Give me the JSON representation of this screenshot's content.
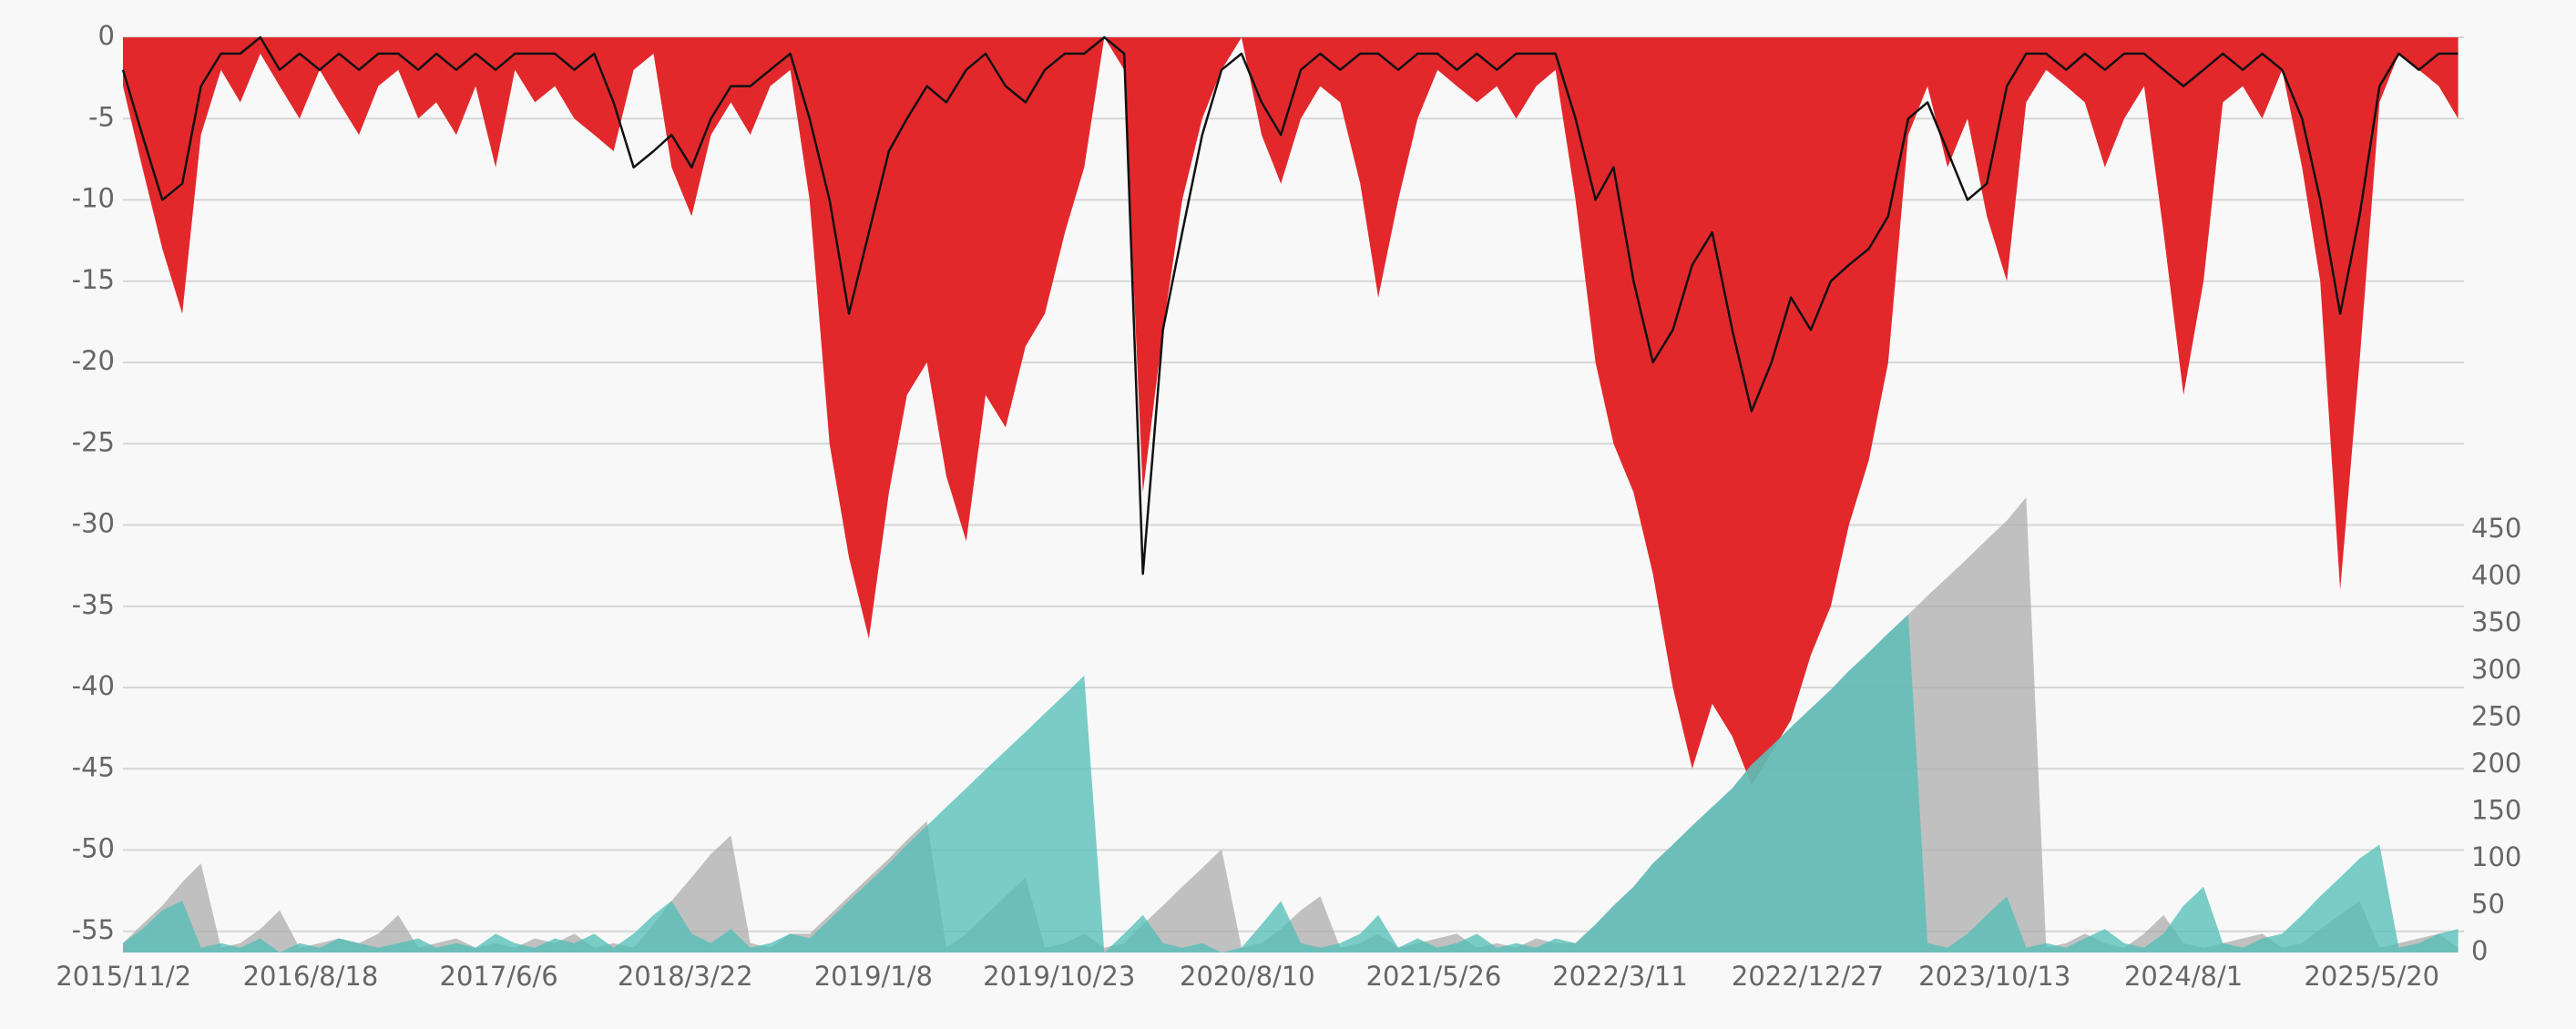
{
  "chart_data": {
    "type": "area",
    "x": [
      "2015/11/1",
      "2015/12/1",
      "2016/1/1",
      "2016/2/1",
      "2016/3/1",
      "2016/4/1",
      "2016/5/1",
      "2016/6/1",
      "2016/7/1",
      "2016/8/1",
      "2016/9/1",
      "2016/10/1",
      "2016/11/1",
      "2016/12/1",
      "2017/1/1",
      "2017/2/1",
      "2017/3/1",
      "2017/4/1",
      "2017/5/1",
      "2017/6/1",
      "2017/7/1",
      "2017/8/1",
      "2017/9/1",
      "2017/10/1",
      "2017/11/1",
      "2017/12/1",
      "2018/1/1",
      "2018/2/1",
      "2018/3/1",
      "2018/4/1",
      "2018/5/1",
      "2018/6/1",
      "2018/7/1",
      "2018/8/1",
      "2018/9/1",
      "2018/10/1",
      "2018/11/1",
      "2018/12/1",
      "2019/1/1",
      "2019/2/1",
      "2019/3/1",
      "2019/4/1",
      "2019/5/1",
      "2019/6/1",
      "2019/7/1",
      "2019/8/1",
      "2019/9/1",
      "2019/10/1",
      "2019/11/1",
      "2019/12/1",
      "2020/1/1",
      "2020/2/1",
      "2020/3/1",
      "2020/4/1",
      "2020/5/1",
      "2020/6/1",
      "2020/7/1",
      "2020/8/1",
      "2020/9/1",
      "2020/10/1",
      "2020/11/1",
      "2020/12/1",
      "2021/1/1",
      "2021/2/1",
      "2021/3/1",
      "2021/4/1",
      "2021/5/1",
      "2021/6/1",
      "2021/7/1",
      "2021/8/1",
      "2021/9/1",
      "2021/10/1",
      "2021/11/1",
      "2021/12/1",
      "2022/1/1",
      "2022/2/1",
      "2022/3/1",
      "2022/4/1",
      "2022/5/1",
      "2022/6/1",
      "2022/7/1",
      "2022/8/1",
      "2022/9/1",
      "2022/10/1",
      "2022/11/1",
      "2022/12/1",
      "2023/1/1",
      "2023/2/1",
      "2023/3/1",
      "2023/4/1",
      "2023/5/1",
      "2023/6/1",
      "2023/7/1",
      "2023/8/1",
      "2023/9/1",
      "2023/10/1",
      "2023/11/1",
      "2023/12/1",
      "2024/1/1",
      "2024/2/1",
      "2024/3/1",
      "2024/4/1",
      "2024/5/1",
      "2024/6/1",
      "2024/7/1",
      "2024/8/1",
      "2024/9/1",
      "2024/10/1",
      "2024/11/1",
      "2024/12/1",
      "2025/1/1",
      "2025/2/1",
      "2025/3/1",
      "2025/4/1",
      "2025/5/1",
      "2025/6/1",
      "2025/7/1",
      "2025/8/1",
      "2025/9/1",
      "2025/10/1"
    ],
    "series": [
      {
        "style": "area",
        "color": "#e3282c",
        "values": [
          -3,
          -8,
          -13,
          -17,
          -6,
          -2,
          -4,
          -1,
          -3,
          -5,
          -2,
          -4,
          -6,
          -3,
          -2,
          -5,
          -4,
          -6,
          -3,
          -8,
          -2,
          -4,
          -3,
          -5,
          -6,
          -7,
          -2,
          -1,
          -8,
          -11,
          -6,
          -4,
          -6,
          -3,
          -2,
          -10,
          -25,
          -32,
          -37,
          -28,
          -22,
          -20,
          -27,
          -31,
          -22,
          -24,
          -19,
          -17,
          -12,
          -8,
          0,
          -2,
          -28,
          -18,
          -10,
          -5,
          -2,
          0,
          -6,
          -9,
          -5,
          -3,
          -4,
          -9,
          -16,
          -10,
          -5,
          -2,
          -3,
          -4,
          -3,
          -5,
          -3,
          -2,
          -10,
          -20,
          -25,
          -28,
          -33,
          -40,
          -45,
          -41,
          -43,
          -46,
          -44,
          -42,
          -38,
          -35,
          -30,
          -26,
          -20,
          -6,
          -3,
          -8,
          -5,
          -11,
          -15,
          -4,
          -2,
          -3,
          -4,
          -8,
          -5,
          -3,
          -12,
          -22,
          -15,
          -4,
          -3,
          -5,
          -2,
          -8,
          -15,
          -34,
          -20,
          -4,
          -1,
          -2,
          -3,
          -5
        ]
      },
      {
        "style": "line",
        "color": "#111111",
        "values": [
          -2,
          -6,
          -10,
          -9,
          -3,
          -1,
          -1,
          0,
          -2,
          -1,
          -2,
          -1,
          -2,
          -1,
          -1,
          -2,
          -1,
          -2,
          -1,
          -2,
          -1,
          -1,
          -1,
          -2,
          -1,
          -4,
          -8,
          -7,
          -6,
          -8,
          -5,
          -3,
          -3,
          -2,
          -1,
          -5,
          -10,
          -17,
          -12,
          -7,
          -5,
          -3,
          -4,
          -2,
          -1,
          -3,
          -4,
          -2,
          -1,
          -1,
          0,
          -1,
          -33,
          -18,
          -12,
          -6,
          -2,
          -1,
          -4,
          -6,
          -2,
          -1,
          -2,
          -1,
          -1,
          -2,
          -1,
          -1,
          -2,
          -1,
          -2,
          -1,
          -1,
          -1,
          -5,
          -10,
          -8,
          -15,
          -20,
          -18,
          -14,
          -12,
          -18,
          -23,
          -20,
          -16,
          -18,
          -15,
          -14,
          -13,
          -11,
          -5,
          -4,
          -7,
          -10,
          -9,
          -3,
          -1,
          -1,
          -2,
          -1,
          -2,
          -1,
          -1,
          -2,
          -3,
          -2,
          -1,
          -2,
          -1,
          -2,
          -5,
          -10,
          -17,
          -11,
          -3,
          -1,
          -2,
          -1,
          -1
        ]
      },
      {
        "style": "area",
        "axis": "y2",
        "color": "rgba(168,168,168,0.7)",
        "values": [
          10,
          30,
          50,
          75,
          95,
          5,
          10,
          25,
          45,
          5,
          10,
          15,
          10,
          20,
          40,
          5,
          10,
          15,
          5,
          10,
          5,
          15,
          10,
          20,
          5,
          10,
          5,
          30,
          55,
          80,
          105,
          125,
          10,
          5,
          20,
          20,
          40,
          60,
          80,
          100,
          120,
          140,
          5,
          20,
          40,
          60,
          80,
          5,
          10,
          20,
          5,
          10,
          30,
          50,
          70,
          90,
          110,
          5,
          10,
          25,
          45,
          60,
          5,
          10,
          20,
          5,
          10,
          15,
          20,
          5,
          10,
          5,
          15,
          10,
          10,
          30,
          50,
          70,
          95,
          115,
          135,
          155,
          175,
          200,
          220,
          240,
          260,
          280,
          300,
          320,
          340,
          360,
          380,
          400,
          420,
          440,
          460,
          485,
          5,
          10,
          20,
          10,
          5,
          20,
          40,
          10,
          5,
          10,
          15,
          20,
          5,
          10,
          25,
          40,
          55,
          5,
          10,
          15,
          20,
          5
        ]
      },
      {
        "style": "area",
        "axis": "y2",
        "color": "rgba(80,190,182,0.75)",
        "values": [
          10,
          25,
          45,
          55,
          5,
          10,
          5,
          15,
          0,
          10,
          5,
          15,
          10,
          5,
          10,
          15,
          5,
          10,
          5,
          20,
          10,
          5,
          15,
          10,
          20,
          5,
          20,
          40,
          55,
          20,
          10,
          25,
          5,
          10,
          20,
          15,
          35,
          55,
          75,
          95,
          115,
          135,
          155,
          175,
          195,
          215,
          235,
          255,
          275,
          295,
          0,
          20,
          40,
          10,
          5,
          10,
          0,
          5,
          30,
          55,
          10,
          5,
          10,
          20,
          40,
          5,
          15,
          5,
          10,
          20,
          5,
          10,
          5,
          15,
          10,
          30,
          50,
          70,
          95,
          115,
          135,
          155,
          175,
          200,
          220,
          240,
          260,
          280,
          300,
          320,
          340,
          360,
          10,
          5,
          20,
          40,
          60,
          5,
          10,
          5,
          15,
          25,
          10,
          5,
          20,
          50,
          70,
          10,
          5,
          15,
          20,
          40,
          60,
          80,
          100,
          115,
          5,
          10,
          20,
          25
        ]
      }
    ],
    "xlim": [
      "2015/11/1",
      "2025/10/10"
    ],
    "xticks": [
      "2015/11/2",
      "2016/8/18",
      "2017/6/6",
      "2018/3/22",
      "2019/1/8",
      "2019/10/23",
      "2020/8/10",
      "2021/5/26",
      "2022/3/11",
      "2022/12/27",
      "2023/10/13",
      "2024/8/1",
      "2025/5/20"
    ],
    "ylim": [
      -56.3,
      0
    ],
    "yticks": [
      0,
      -5,
      -10,
      -15,
      -20,
      -25,
      -30,
      -35,
      -40,
      -45,
      -50,
      -55
    ],
    "y2lim": [
      0,
      975
    ],
    "y2ticks": [
      0,
      50,
      100,
      150,
      200,
      250,
      300,
      350,
      400,
      450
    ],
    "grid": true
  }
}
